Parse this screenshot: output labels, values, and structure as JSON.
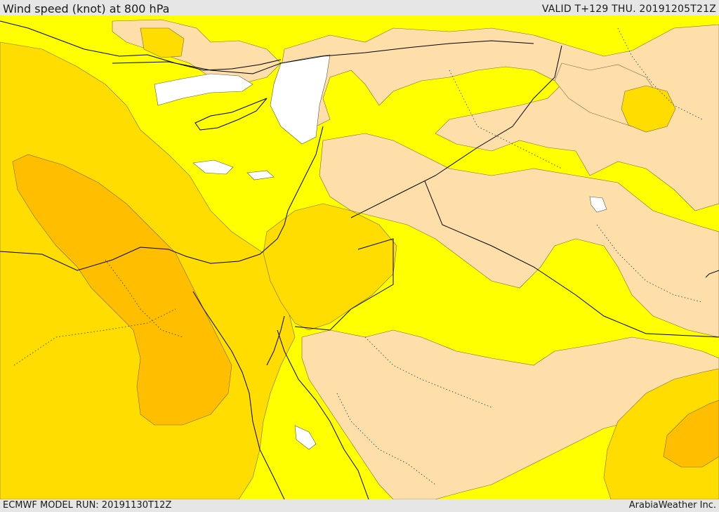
{
  "header": {
    "title": "Wind speed (knot) at 800 hPa",
    "valid_time": "VALID T+129 THU. 20191205T21Z"
  },
  "footer": {
    "model_run": "ECMWF MODEL RUN: 20191130T12Z",
    "credit": "ArabiaWeather Inc."
  },
  "map": {
    "fill_colors": {
      "light": "#fedfaa",
      "yellow": "#ffff00",
      "gold": "#ffdd00",
      "orange": "#ffbe00",
      "calm": "#ffffff"
    },
    "border_color": "#000000"
  }
}
